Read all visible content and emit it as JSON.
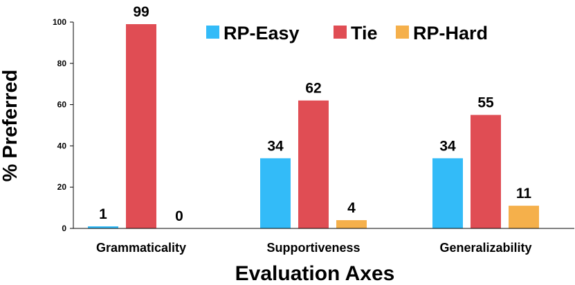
{
  "chart_data": {
    "type": "bar",
    "title": "",
    "xlabel": "Evaluation Axes",
    "ylabel": "% Preferred",
    "ylim": [
      0,
      100
    ],
    "yticks": [
      0,
      20,
      40,
      60,
      80,
      100
    ],
    "grid": false,
    "legend_position": "top-right",
    "categories": [
      "Grammaticality",
      "Supportiveness",
      "Generalizability"
    ],
    "series": [
      {
        "name": "RP-Easy",
        "color": "#33bbf8",
        "values": [
          1,
          34,
          34
        ]
      },
      {
        "name": "Tie",
        "color": "#e04d54",
        "values": [
          99,
          62,
          55
        ]
      },
      {
        "name": "RP-Hard",
        "color": "#f5b04b",
        "values": [
          0,
          4,
          11
        ]
      }
    ]
  }
}
